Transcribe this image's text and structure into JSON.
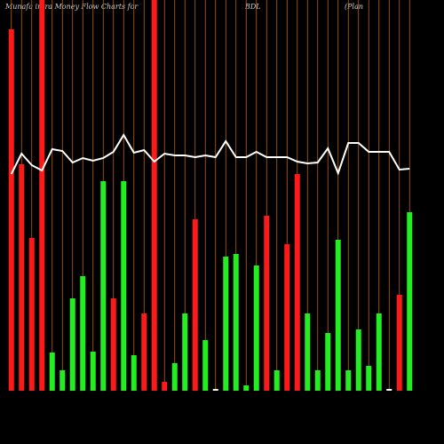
{
  "chart_data": {
    "type": "bar",
    "title": "Munafa intra Money Flow Charts for",
    "subtitle": "BDL",
    "note": "(Plan",
    "ylim": [
      0,
      440
    ],
    "series": [
      {
        "name": "money flow",
        "values": [
          407,
          255,
          172,
          440,
          43,
          23,
          104,
          129,
          44,
          236,
          104,
          236,
          40,
          87,
          440,
          10,
          31,
          87,
          193,
          57,
          2,
          151,
          154,
          6,
          141,
          197,
          23,
          165,
          244,
          87,
          23,
          65,
          170,
          23,
          69,
          28,
          87,
          2,
          108,
          201
        ],
        "colors": [
          "#ff1a1a",
          "#ff1a1a",
          "#ff1a1a",
          "#ff1a1a",
          "#22ee22",
          "#22ee22",
          "#22ee22",
          "#22ee22",
          "#22ee22",
          "#22ee22",
          "#ff1a1a",
          "#22ee22",
          "#22ee22",
          "#ff1a1a",
          "#ff1a1a",
          "#ff1a1a",
          "#22ee22",
          "#22ee22",
          "#ff1a1a",
          "#22ee22",
          "#ffffff",
          "#22ee22",
          "#22ee22",
          "#22ee22",
          "#22ee22",
          "#ff1a1a",
          "#22ee22",
          "#ff1a1a",
          "#ff1a1a",
          "#22ee22",
          "#22ee22",
          "#22ee22",
          "#22ee22",
          "#22ee22",
          "#22ee22",
          "#22ee22",
          "#22ee22",
          "#ffffff",
          "#ff1a1a",
          "#22ee22"
        ]
      },
      {
        "name": "price",
        "type": "line",
        "color": "#ffffff",
        "values": [
          244,
          267,
          254,
          248,
          272,
          270,
          257,
          262,
          259,
          262,
          269,
          288,
          268,
          271,
          258,
          267,
          265,
          265,
          263,
          265,
          263,
          281,
          263,
          263,
          269,
          263,
          263,
          263,
          258,
          256,
          257,
          273,
          245,
          279,
          279,
          269,
          269,
          269,
          249,
          250
        ]
      }
    ],
    "grid_color": "#b8621a"
  }
}
